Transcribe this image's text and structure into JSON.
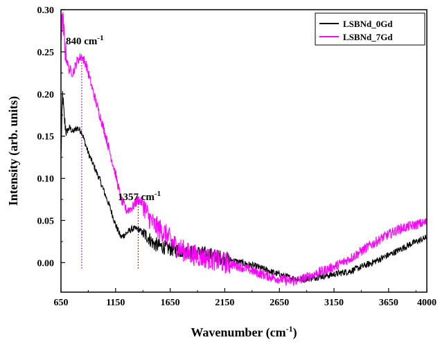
{
  "chart_data": {
    "type": "line",
    "title": "",
    "xlabel": "Wavenumber (cm",
    "xlabel_sup": "-1",
    "xlabel_tail": ")",
    "ylabel": "Intensity (arb. units)",
    "xlim": [
      650,
      4000
    ],
    "ylim": [
      -0.035,
      0.3
    ],
    "xticks": [
      650,
      1150,
      1650,
      2150,
      2650,
      3150,
      3650,
      4000
    ],
    "xtick_labels": [
      "650",
      "1150",
      "1650",
      "2150",
      "2650",
      "3150",
      "3650",
      "4000"
    ],
    "yticks": [
      0.0,
      0.05,
      0.1,
      0.15,
      0.2,
      0.25,
      0.3
    ],
    "ytick_labels": [
      "0.00",
      "0.05",
      "0.10",
      "0.15",
      "0.20",
      "0.25",
      "0.30"
    ],
    "grid": false,
    "legend_position": "top-right",
    "annotations": [
      {
        "text": "840 cm",
        "sup": "-1",
        "x": 840,
        "line_color": "#8000ff"
      },
      {
        "text": "1357 cm",
        "sup": "-1",
        "x": 1357,
        "line_color": "#8000ff"
      }
    ],
    "series": [
      {
        "name": "LSBNd_0Gd",
        "color": "#000000",
        "points": [
          [
            650,
            0.125
          ],
          [
            665,
            0.2
          ],
          [
            680,
            0.17
          ],
          [
            700,
            0.155
          ],
          [
            730,
            0.16
          ],
          [
            760,
            0.155
          ],
          [
            800,
            0.16
          ],
          [
            840,
            0.155
          ],
          [
            900,
            0.13
          ],
          [
            1000,
            0.1
          ],
          [
            1100,
            0.065
          ],
          [
            1150,
            0.045
          ],
          [
            1200,
            0.03
          ],
          [
            1250,
            0.035
          ],
          [
            1300,
            0.04
          ],
          [
            1357,
            0.04
          ],
          [
            1400,
            0.035
          ],
          [
            1450,
            0.03
          ],
          [
            1500,
            0.022
          ],
          [
            1600,
            0.018
          ],
          [
            1700,
            0.015
          ],
          [
            1800,
            0.013
          ],
          [
            1900,
            0.012
          ],
          [
            2000,
            0.01
          ],
          [
            2150,
            0.005
          ],
          [
            2300,
            0.0
          ],
          [
            2450,
            -0.005
          ],
          [
            2600,
            -0.012
          ],
          [
            2750,
            -0.018
          ],
          [
            2850,
            -0.02
          ],
          [
            2950,
            -0.018
          ],
          [
            3100,
            -0.015
          ],
          [
            3300,
            -0.01
          ],
          [
            3500,
            0.0
          ],
          [
            3700,
            0.012
          ],
          [
            3850,
            0.022
          ],
          [
            4000,
            0.03
          ]
        ],
        "noise": 0.004
      },
      {
        "name": "LSBNd_7Gd",
        "color": "#ff00ff",
        "points": [
          [
            650,
            0.27
          ],
          [
            665,
            0.29
          ],
          [
            690,
            0.25
          ],
          [
            720,
            0.23
          ],
          [
            760,
            0.225
          ],
          [
            800,
            0.24
          ],
          [
            840,
            0.245
          ],
          [
            880,
            0.235
          ],
          [
            950,
            0.2
          ],
          [
            1050,
            0.155
          ],
          [
            1150,
            0.105
          ],
          [
            1200,
            0.075
          ],
          [
            1250,
            0.062
          ],
          [
            1300,
            0.065
          ],
          [
            1357,
            0.075
          ],
          [
            1400,
            0.07
          ],
          [
            1450,
            0.055
          ],
          [
            1500,
            0.045
          ],
          [
            1550,
            0.04
          ],
          [
            1600,
            0.035
          ],
          [
            1700,
            0.02
          ],
          [
            1800,
            0.012
          ],
          [
            1900,
            0.008
          ],
          [
            2000,
            0.005
          ],
          [
            2150,
            0.0
          ],
          [
            2300,
            -0.005
          ],
          [
            2450,
            -0.012
          ],
          [
            2600,
            -0.018
          ],
          [
            2750,
            -0.022
          ],
          [
            2850,
            -0.02
          ],
          [
            3000,
            -0.012
          ],
          [
            3150,
            -0.005
          ],
          [
            3300,
            0.005
          ],
          [
            3450,
            0.018
          ],
          [
            3600,
            0.03
          ],
          [
            3750,
            0.04
          ],
          [
            3900,
            0.045
          ],
          [
            4000,
            0.048
          ]
        ],
        "noise": 0.006
      }
    ]
  }
}
